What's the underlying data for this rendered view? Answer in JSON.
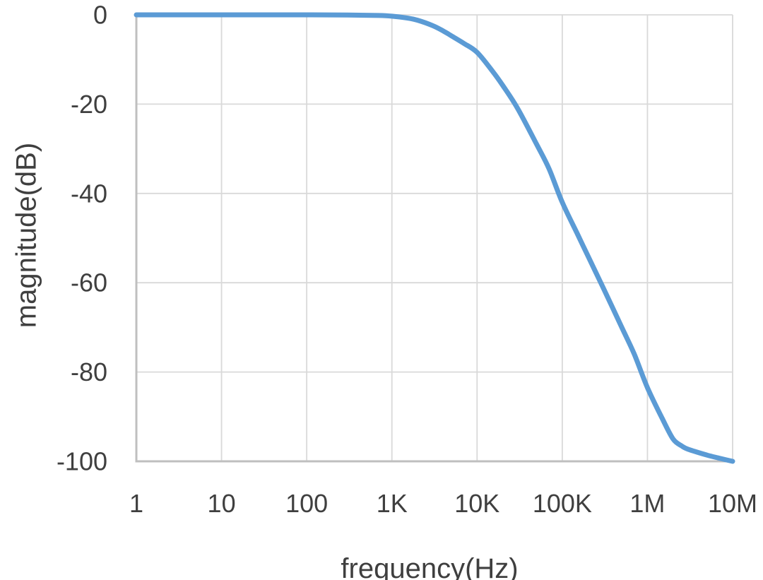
{
  "chart_data": {
    "type": "line",
    "title": "",
    "xlabel": "frequency(Hz)",
    "ylabel": "magnitude(dB)",
    "x_scale": "log10",
    "xlim": [
      1,
      10000000
    ],
    "ylim": [
      -100,
      0
    ],
    "grid": true,
    "legend": "none",
    "x_ticks": [
      {
        "label": "1",
        "value": 1
      },
      {
        "label": "10",
        "value": 10
      },
      {
        "label": "100",
        "value": 100
      },
      {
        "label": "1K",
        "value": 1000
      },
      {
        "label": "10K",
        "value": 10000
      },
      {
        "label": "100K",
        "value": 100000
      },
      {
        "label": "1M",
        "value": 1000000
      },
      {
        "label": "10M",
        "value": 10000000
      }
    ],
    "y_ticks": [
      {
        "label": "0",
        "value": 0
      },
      {
        "label": "-20",
        "value": -20
      },
      {
        "label": "-40",
        "value": -40
      },
      {
        "label": "-60",
        "value": -60
      },
      {
        "label": "-80",
        "value": -80
      },
      {
        "label": "-100",
        "value": -100
      }
    ],
    "series": [
      {
        "name": "magnitude",
        "color": "#5B9BD5",
        "points": [
          [
            1,
            0
          ],
          [
            3,
            0
          ],
          [
            10,
            0
          ],
          [
            30,
            0
          ],
          [
            100,
            0
          ],
          [
            300,
            -0.05
          ],
          [
            700,
            -0.15
          ],
          [
            1000,
            -0.3
          ],
          [
            1500,
            -0.7
          ],
          [
            2000,
            -1.2
          ],
          [
            3000,
            -2.4
          ],
          [
            4000,
            -3.6
          ],
          [
            5000,
            -4.7
          ],
          [
            7000,
            -6.4
          ],
          [
            10000,
            -8.4
          ],
          [
            15000,
            -12.5
          ],
          [
            20000,
            -15.8
          ],
          [
            30000,
            -21
          ],
          [
            50000,
            -29
          ],
          [
            70000,
            -34.5
          ],
          [
            100000,
            -42
          ],
          [
            150000,
            -49
          ],
          [
            200000,
            -54
          ],
          [
            300000,
            -61
          ],
          [
            500000,
            -70
          ],
          [
            700000,
            -76
          ],
          [
            1000000,
            -83.5
          ],
          [
            1500000,
            -90.5
          ],
          [
            2000000,
            -95
          ],
          [
            2500000,
            -96.5
          ],
          [
            3000000,
            -97.3
          ],
          [
            5000000,
            -98.6
          ],
          [
            7000000,
            -99.3
          ],
          [
            10000000,
            -100
          ]
        ]
      }
    ]
  },
  "colors": {
    "background": "#ffffff",
    "gridline": "#d9d9d9",
    "axis_line": "#bfbfbf",
    "text": "#3f3f3f",
    "line": "#5B9BD5"
  }
}
